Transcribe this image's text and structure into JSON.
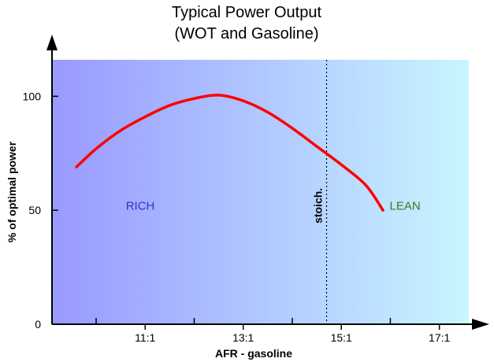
{
  "chart_data": {
    "type": "line",
    "title_lines": [
      "Typical Power Output",
      "(WOT and Gasoline)"
    ],
    "xlabel": "AFR - gasoline",
    "ylabel": "% of optimal power",
    "x_ticks": [
      {
        "value": 11,
        "label": "11:1"
      },
      {
        "value": 13,
        "label": "13:1"
      },
      {
        "value": 15,
        "label": "15:1"
      },
      {
        "value": 17,
        "label": "17:1"
      }
    ],
    "x_minor_ticks": [
      10,
      12,
      14,
      16
    ],
    "y_ticks": [
      {
        "value": 0,
        "label": "0"
      },
      {
        "value": 50,
        "label": "50"
      },
      {
        "value": 100,
        "label": "100"
      }
    ],
    "xlim": [
      9.1,
      17.6
    ],
    "ylim": [
      0,
      116
    ],
    "series": [
      {
        "color": "#ff0000",
        "x": [
          9.6,
          10.0,
          10.5,
          11.0,
          11.5,
          12.0,
          12.5,
          13.0,
          13.5,
          14.0,
          14.5,
          15.0,
          15.5,
          15.85
        ],
        "y": [
          69,
          77,
          85,
          91,
          96,
          99,
          100.5,
          98,
          93,
          86,
          78,
          70,
          61,
          50
        ]
      }
    ],
    "reference_line": {
      "x": 14.7,
      "label": "stoich.",
      "style": "dotted"
    },
    "regions": [
      {
        "label": "RICH",
        "x": 10.9,
        "y": 52,
        "color": "#3333cc"
      },
      {
        "label": "LEAN",
        "x": 16.3,
        "y": 52,
        "color": "#3a7a22"
      }
    ],
    "background_gradient": [
      "#9999ff",
      "#c8f6ff"
    ],
    "grid": false,
    "legend": "none"
  }
}
